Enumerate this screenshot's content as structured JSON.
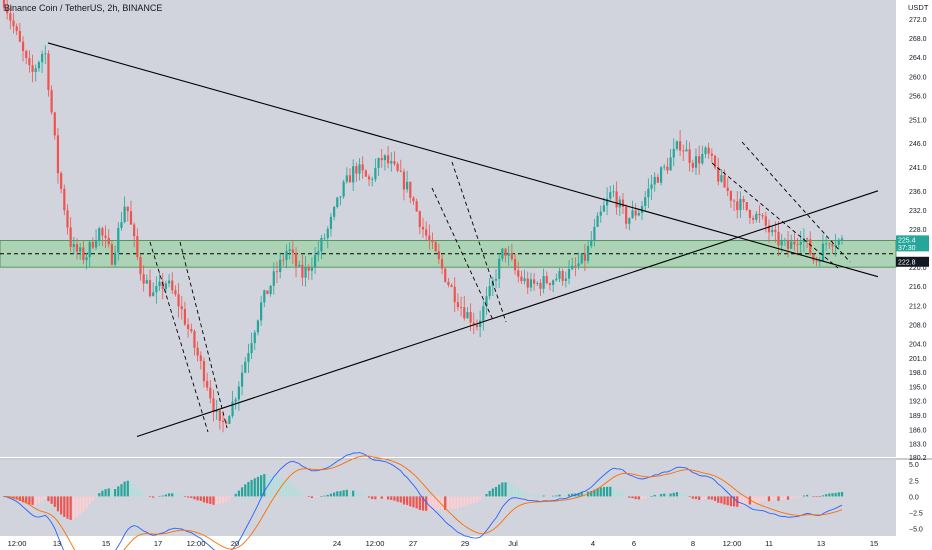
{
  "header": {
    "title": "Binance Coin / TetherUS, 2h, BINANCE",
    "currency": "USDT"
  },
  "colors": {
    "plot_bg": "#d1d4dc",
    "osc_bg": "#d1d4dc",
    "candle_up": "#26a69a",
    "candle_down": "#ef5350",
    "zone_fill": "#9fd3a8",
    "macd_line": "#2962ff",
    "signal_line": "#ff6d00",
    "hist_up": "#26a69a",
    "hist_down": "#ef5350",
    "hist_up_fading": "#b2dfdb",
    "hist_down_fading": "#ffcdd2",
    "axis_text": "#131722",
    "trendline": "#000000"
  },
  "chart_data": {
    "type": "candlestick",
    "title": "Binance Coin / TetherUS, 2h, BINANCE",
    "symbol": "BNB/USDT",
    "interval": "2h",
    "exchange": "BINANCE",
    "price_axis": {
      "range": [
        180.2,
        276.0
      ],
      "ticks": [
        "272.0",
        "268.0",
        "264.0",
        "260.0",
        "256.0",
        "251.0",
        "246.0",
        "241.0",
        "236.0",
        "232.0",
        "228.0",
        "224.0",
        "220.0",
        "216.0",
        "212.0",
        "208.0",
        "204.0",
        "201.0",
        "198.0",
        "195.0",
        "192.0",
        "189.0",
        "186.0",
        "183.0",
        "180.2"
      ],
      "last_price_label": "225.4",
      "countdown_label": "37:30",
      "level_label": "222.8"
    },
    "time_axis": {
      "labels": [
        "12:00",
        "13",
        "15",
        "17",
        "12:00",
        "20",
        "24",
        "12:00",
        "27",
        "29",
        "Jul",
        "4",
        "6",
        "8",
        "12:00",
        "11",
        "13",
        "15"
      ]
    },
    "support_resistance_zone": {
      "low": 220.0,
      "high": 225.6,
      "midline": 222.8
    },
    "trendlines": [
      {
        "name": "descending resistance",
        "from": [
          "Jun 12 18:00",
          267.0
        ],
        "to": [
          "Jul 14 22:00",
          218.0
        ]
      },
      {
        "name": "ascending support",
        "from": [
          "Jun 16 12:00",
          184.5
        ],
        "to": [
          "Jul 14 22:00",
          236.0
        ]
      }
    ],
    "candle_path": [
      [
        0,
        276.0
      ],
      [
        2,
        268.0
      ],
      [
        4,
        260.0
      ],
      [
        6,
        266.0
      ],
      [
        8,
        240.0
      ],
      [
        10,
        224.0
      ],
      [
        12,
        222.0
      ],
      [
        14,
        228.0
      ],
      [
        16,
        222.0
      ],
      [
        18,
        234.0
      ],
      [
        20,
        220.0
      ],
      [
        22,
        214.0
      ],
      [
        24,
        217.0
      ],
      [
        26,
        212.0
      ],
      [
        28,
        204.0
      ],
      [
        30,
        196.0
      ],
      [
        32,
        186.0
      ],
      [
        34,
        192.0
      ],
      [
        36,
        202.0
      ],
      [
        38,
        212.0
      ],
      [
        40,
        218.0
      ],
      [
        42,
        224.0
      ],
      [
        44,
        218.0
      ],
      [
        46,
        222.0
      ],
      [
        48,
        228.0
      ],
      [
        50,
        236.0
      ],
      [
        52,
        241.0
      ],
      [
        54,
        238.0
      ],
      [
        56,
        243.0
      ],
      [
        58,
        240.0
      ],
      [
        60,
        236.0
      ],
      [
        62,
        228.0
      ],
      [
        64,
        222.0
      ],
      [
        66,
        216.0
      ],
      [
        68,
        211.0
      ],
      [
        70,
        208.0
      ],
      [
        72,
        215.0
      ],
      [
        74,
        224.0
      ],
      [
        76,
        218.0
      ],
      [
        78,
        216.0
      ],
      [
        80,
        217.0
      ],
      [
        82,
        218.0
      ],
      [
        84,
        219.0
      ],
      [
        86,
        222.0
      ],
      [
        88,
        230.0
      ],
      [
        90,
        236.0
      ],
      [
        92,
        230.0
      ],
      [
        94,
        232.0
      ],
      [
        96,
        238.0
      ],
      [
        98,
        241.0
      ],
      [
        100,
        246.0
      ],
      [
        102,
        242.0
      ],
      [
        104,
        244.0
      ],
      [
        106,
        238.0
      ],
      [
        108,
        234.0
      ],
      [
        110,
        232.0
      ],
      [
        112,
        230.0
      ],
      [
        114,
        226.0
      ],
      [
        116,
        224.0
      ],
      [
        118,
        227.0
      ],
      [
        120,
        221.0
      ],
      [
        122,
        226.0
      ],
      [
        124,
        225.4
      ]
    ],
    "macd": {
      "axis_ticks": [
        "5.0",
        "2.5",
        "0.0",
        "−2.5",
        "−5.0"
      ],
      "range": [
        -6.0,
        5.5
      ]
    }
  }
}
